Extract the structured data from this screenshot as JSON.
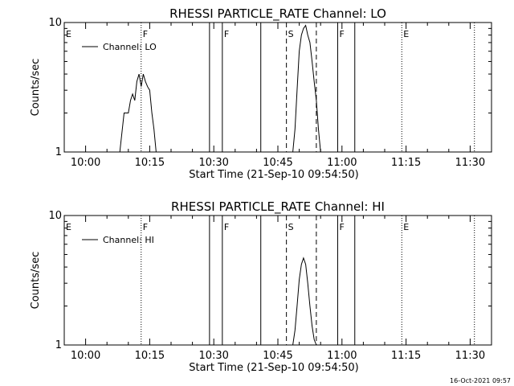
{
  "chart_data": [
    {
      "type": "line",
      "title": "RHESSI PARTICLE_RATE Channel: LO",
      "xlabel": "Start Time (21-Sep-10 09:54:50)",
      "ylabel": "Counts/sec",
      "y_scale": "log",
      "ylim": [
        1,
        10
      ],
      "y_ticks": [
        "1",
        "10"
      ],
      "x_unit": "minutes",
      "xlim": [
        "09:55",
        "11:35"
      ],
      "x_ticks": [
        "10:00",
        "10:15",
        "10:30",
        "10:45",
        "11:00",
        "11:15",
        "11:30"
      ],
      "legend": {
        "placement": "top-left",
        "label": "Channel: LO"
      },
      "series": [
        {
          "name": "Channel: LO",
          "x": [
            "10:08",
            "10:09",
            "10:10",
            "10:10.5",
            "10:11",
            "10:11.5",
            "10:12",
            "10:12.5",
            "10:13",
            "10:13.5",
            "10:14",
            "10:14.5",
            "10:15",
            "10:15.5",
            "10:16",
            "10:16.5",
            "10:17",
            "10:48.5",
            "10:49",
            "10:49.5",
            "10:50",
            "10:50.5",
            "10:51",
            "10:51.5",
            "10:52",
            "10:52.5",
            "10:53",
            "10:53.5",
            "10:54",
            "10:54.5",
            "10:55"
          ],
          "y": [
            1,
            2,
            2,
            2.5,
            2.8,
            2.5,
            3.5,
            4,
            3.2,
            4,
            3.5,
            3.2,
            3,
            2,
            1.5,
            1,
            1,
            1,
            1.5,
            3,
            6,
            8,
            9,
            9.5,
            8,
            7,
            5,
            3.5,
            2.5,
            1.5,
            1
          ],
          "segments": [
            [
              0,
              16
            ],
            [
              17,
              30
            ]
          ]
        }
      ],
      "flags": [
        {
          "label": "E",
          "x": "09:55",
          "line": "none"
        },
        {
          "label": "F",
          "x": "10:13",
          "line": "dotted"
        },
        {
          "label": "",
          "x": "10:29",
          "line": "solid"
        },
        {
          "label": "F",
          "x": "10:32",
          "line": "solid"
        },
        {
          "label": "",
          "x": "10:41",
          "line": "solid"
        },
        {
          "label": "S",
          "x": "10:47",
          "line": "dashed"
        },
        {
          "label": "",
          "x": "10:54",
          "line": "dashed"
        },
        {
          "label": "F",
          "x": "10:59",
          "line": "solid"
        },
        {
          "label": "",
          "x": "11:03",
          "line": "solid"
        },
        {
          "label": "E",
          "x": "11:14",
          "line": "dotted"
        },
        {
          "label": "",
          "x": "11:31",
          "line": "dotted"
        }
      ]
    },
    {
      "type": "line",
      "title": "RHESSI PARTICLE_RATE Channel: HI",
      "xlabel": "Start Time (21-Sep-10 09:54:50)",
      "ylabel": "Counts/sec",
      "y_scale": "log",
      "ylim": [
        1,
        10
      ],
      "y_ticks": [
        "1",
        "10"
      ],
      "x_unit": "minutes",
      "xlim": [
        "09:55",
        "11:35"
      ],
      "x_ticks": [
        "10:00",
        "10:15",
        "10:30",
        "10:45",
        "11:00",
        "11:15",
        "11:30"
      ],
      "legend": {
        "placement": "top-left",
        "label": "Channel: HI"
      },
      "series": [
        {
          "name": "Channel: HI",
          "x": [
            "10:48.5",
            "10:49",
            "10:49.5",
            "10:50",
            "10:50.5",
            "10:51",
            "10:51.5",
            "10:52",
            "10:52.5",
            "10:53",
            "10:53.5",
            "10:54"
          ],
          "y": [
            1,
            1.3,
            2,
            3.2,
            4.2,
            4.7,
            4.2,
            3,
            2,
            1.4,
            1.1,
            1
          ],
          "segments": [
            [
              0,
              11
            ]
          ]
        }
      ],
      "flags": [
        {
          "label": "E",
          "x": "09:55",
          "line": "none"
        },
        {
          "label": "F",
          "x": "10:13",
          "line": "dotted"
        },
        {
          "label": "",
          "x": "10:29",
          "line": "solid"
        },
        {
          "label": "F",
          "x": "10:32",
          "line": "solid"
        },
        {
          "label": "",
          "x": "10:41",
          "line": "solid"
        },
        {
          "label": "S",
          "x": "10:47",
          "line": "dashed"
        },
        {
          "label": "",
          "x": "10:54",
          "line": "dashed"
        },
        {
          "label": "F",
          "x": "10:59",
          "line": "solid"
        },
        {
          "label": "",
          "x": "11:03",
          "line": "solid"
        },
        {
          "label": "E",
          "x": "11:14",
          "line": "dotted"
        },
        {
          "label": "",
          "x": "11:31",
          "line": "dotted"
        }
      ]
    }
  ],
  "footer": {
    "timestamp": "16-Oct-2021 09:57"
  }
}
